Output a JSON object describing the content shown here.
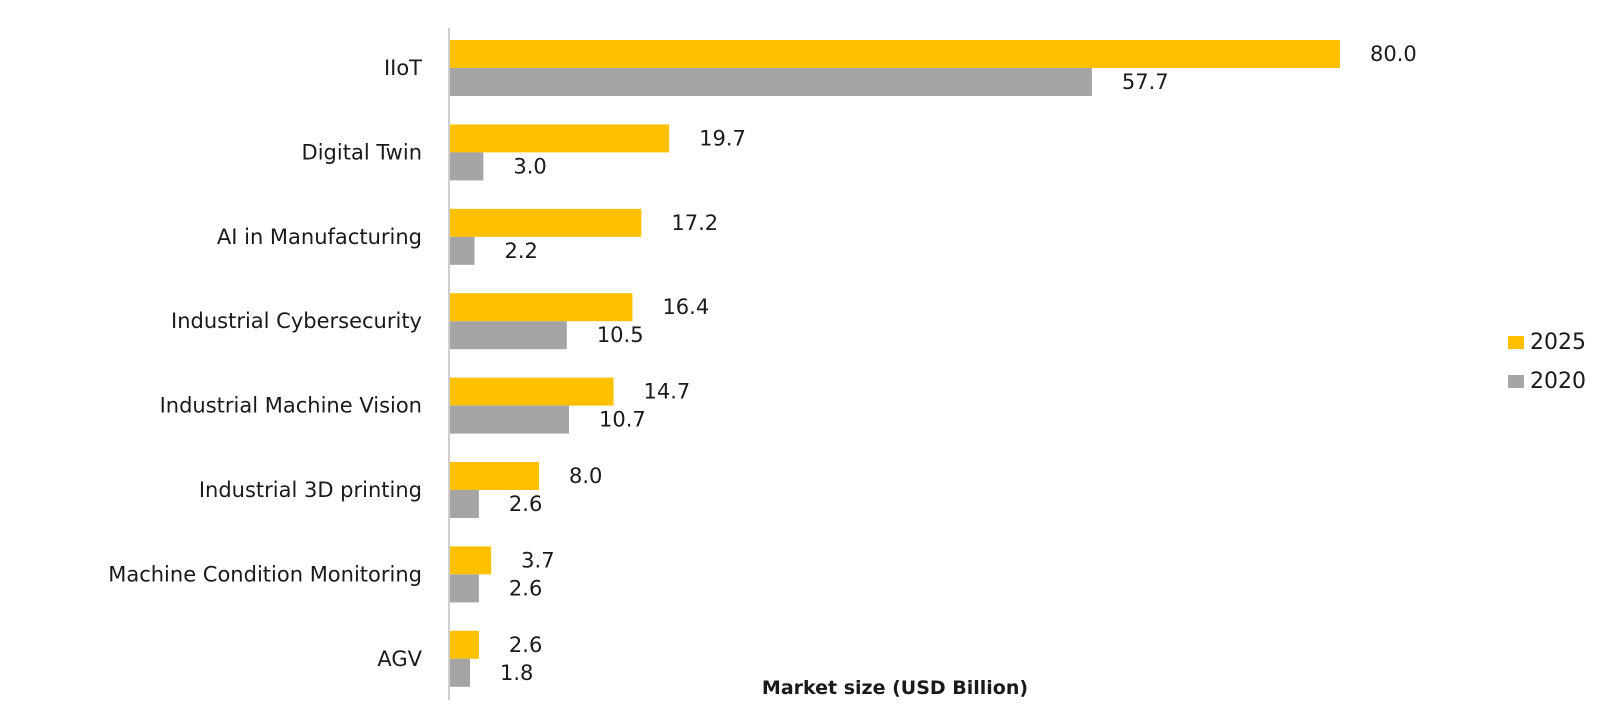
{
  "chart_data": {
    "type": "bar",
    "orientation": "horizontal",
    "categories": [
      "IIoT",
      "Digital Twin",
      "AI in Manufacturing",
      "Industrial Cybersecurity",
      "Industrial Machine Vision",
      "Industrial 3D printing",
      "Machine Condition Monitoring",
      "AGV"
    ],
    "series": [
      {
        "name": "2025",
        "color": "#FFC000",
        "values": [
          80.0,
          19.7,
          17.2,
          16.4,
          14.7,
          8.0,
          3.7,
          2.6
        ],
        "labels": [
          "80.0",
          "19.7",
          "17.2",
          "16.4",
          "14.7",
          "8.0",
          "3.7",
          "2.6"
        ]
      },
      {
        "name": "2020",
        "color": "#A5A5A5",
        "values": [
          57.7,
          3.0,
          2.2,
          10.5,
          10.7,
          2.6,
          2.6,
          1.8
        ],
        "labels": [
          "57.7",
          "3.0",
          "2.2",
          "10.5",
          "10.7",
          "2.6",
          "2.6",
          "1.8"
        ]
      }
    ],
    "xlabel": "Market size (USD Billion)",
    "xlim": [
      0,
      80
    ],
    "grid": false,
    "legend": "right"
  }
}
